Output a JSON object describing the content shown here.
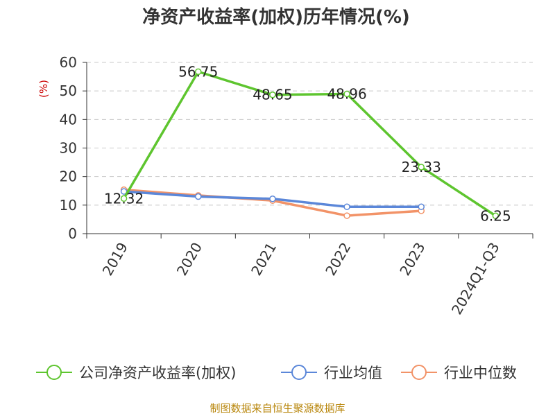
{
  "title": "净资产收益率(加权)历年情况(%)",
  "source": "制图数据来自恒生聚源数据库",
  "chart_data": {
    "type": "line",
    "ylabel": "(%)",
    "ylim": [
      0,
      60
    ],
    "yticks": [
      0,
      10,
      20,
      30,
      40,
      50,
      60
    ],
    "grid": true,
    "legend_position": "bottom",
    "categories": [
      "2019",
      "2020",
      "2021",
      "2022",
      "2023",
      "2024Q1-Q3"
    ],
    "series": [
      {
        "name": "公司净资产收益率(加权)",
        "color": "#5ec52f",
        "values": [
          12.32,
          56.75,
          48.65,
          48.96,
          23.33,
          6.25
        ],
        "labels": [
          "12.32",
          "56.75",
          "48.65",
          "48.96",
          "23.33",
          "6.25"
        ]
      },
      {
        "name": "行业均值",
        "color": "#5b87d9",
        "values": [
          14.8,
          13.0,
          12.2,
          9.4,
          9.4,
          null
        ]
      },
      {
        "name": "行业中位数",
        "color": "#f29368",
        "values": [
          15.4,
          13.4,
          11.6,
          6.3,
          8.0,
          null
        ]
      }
    ]
  }
}
